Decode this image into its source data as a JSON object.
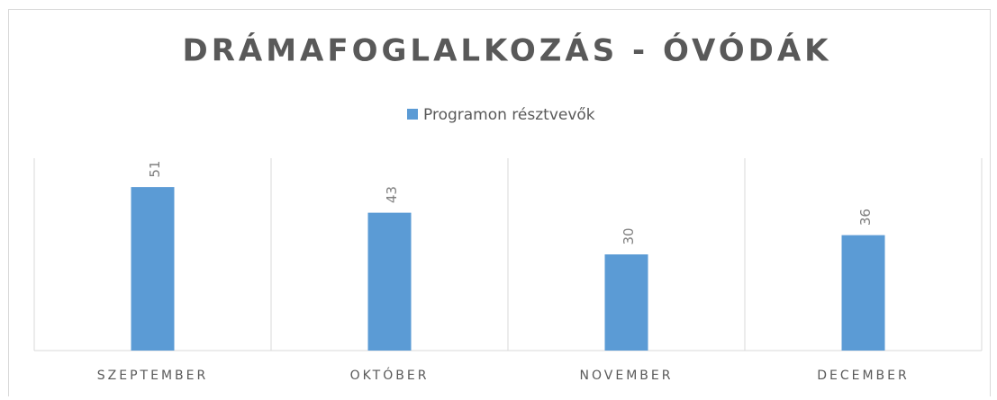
{
  "chart_data": {
    "type": "bar",
    "title": "DRÁMAFOGLALKOZÁS - ÓVÓDÁK",
    "categories": [
      "SZEPTEMBER",
      "OKTÓBER",
      "NOVEMBER",
      "DECEMBER"
    ],
    "series": [
      {
        "name": "Programon résztvevők",
        "color": "#5b9bd5",
        "values": [
          51,
          43,
          30,
          36
        ]
      }
    ],
    "ylim": [
      0,
      60
    ],
    "legend": "top"
  }
}
